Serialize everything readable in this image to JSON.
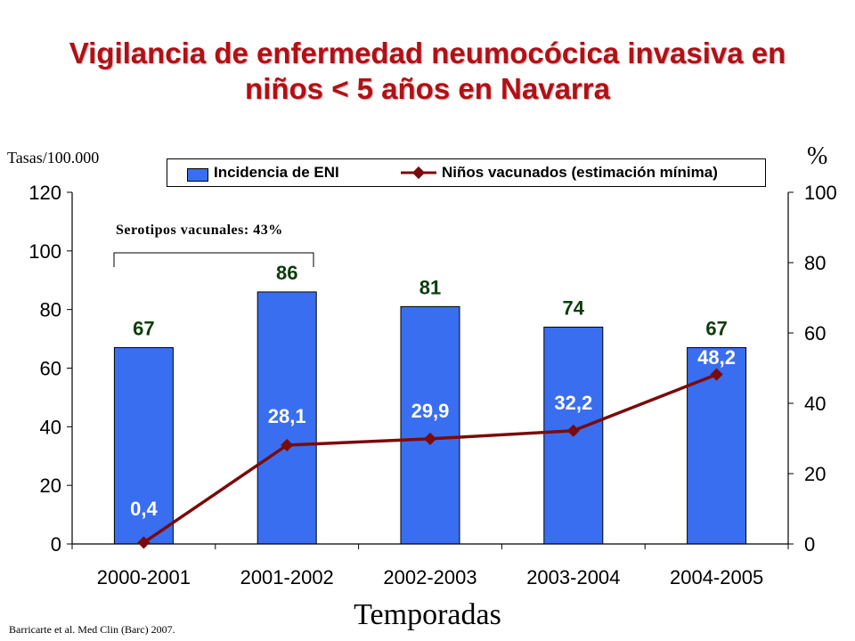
{
  "title_line1": "Vigilancia de enfermedad neumocócica invasiva en",
  "title_line2": "niños < 5 años en Navarra",
  "y_left_caption": "Tasas/100.000",
  "y_right_caption": "%",
  "annotation": "Serotipos vacunales: 43%",
  "xlabel": "Temporadas",
  "source": "Barricarte et al. Med Clin (Barc) 2007.",
  "colors": {
    "title": "#b11016",
    "bar": "#3a6ef0",
    "line": "#7a0b0b",
    "bar_label": "#0b3d0b",
    "line_label": "#ffffff"
  },
  "chart_data": {
    "type": "bar+line",
    "categories": [
      "2000-2001",
      "2001-2002",
      "2002-2003",
      "2003-2004",
      "2004-2005"
    ],
    "series": [
      {
        "name": "Incidencia de ENI",
        "type": "bar",
        "axis": "left",
        "values": [
          67,
          86,
          81,
          74,
          67
        ],
        "labels": [
          "67",
          "86",
          "81",
          "74",
          "67"
        ]
      },
      {
        "name": "Niños vacunados (estimación mínima)",
        "type": "line",
        "axis": "right",
        "values": [
          0.4,
          28.1,
          29.9,
          32.2,
          48.2
        ],
        "labels": [
          "0,4",
          "28,1",
          "29,9",
          "32,2",
          "48,2"
        ]
      }
    ],
    "y_left": {
      "min": 0,
      "max": 120,
      "ticks": [
        0,
        20,
        40,
        60,
        80,
        100,
        120
      ]
    },
    "y_right": {
      "min": 0,
      "max": 100,
      "ticks": [
        0,
        20,
        40,
        60,
        80,
        100
      ]
    },
    "legend_position": "top",
    "grid": false
  }
}
